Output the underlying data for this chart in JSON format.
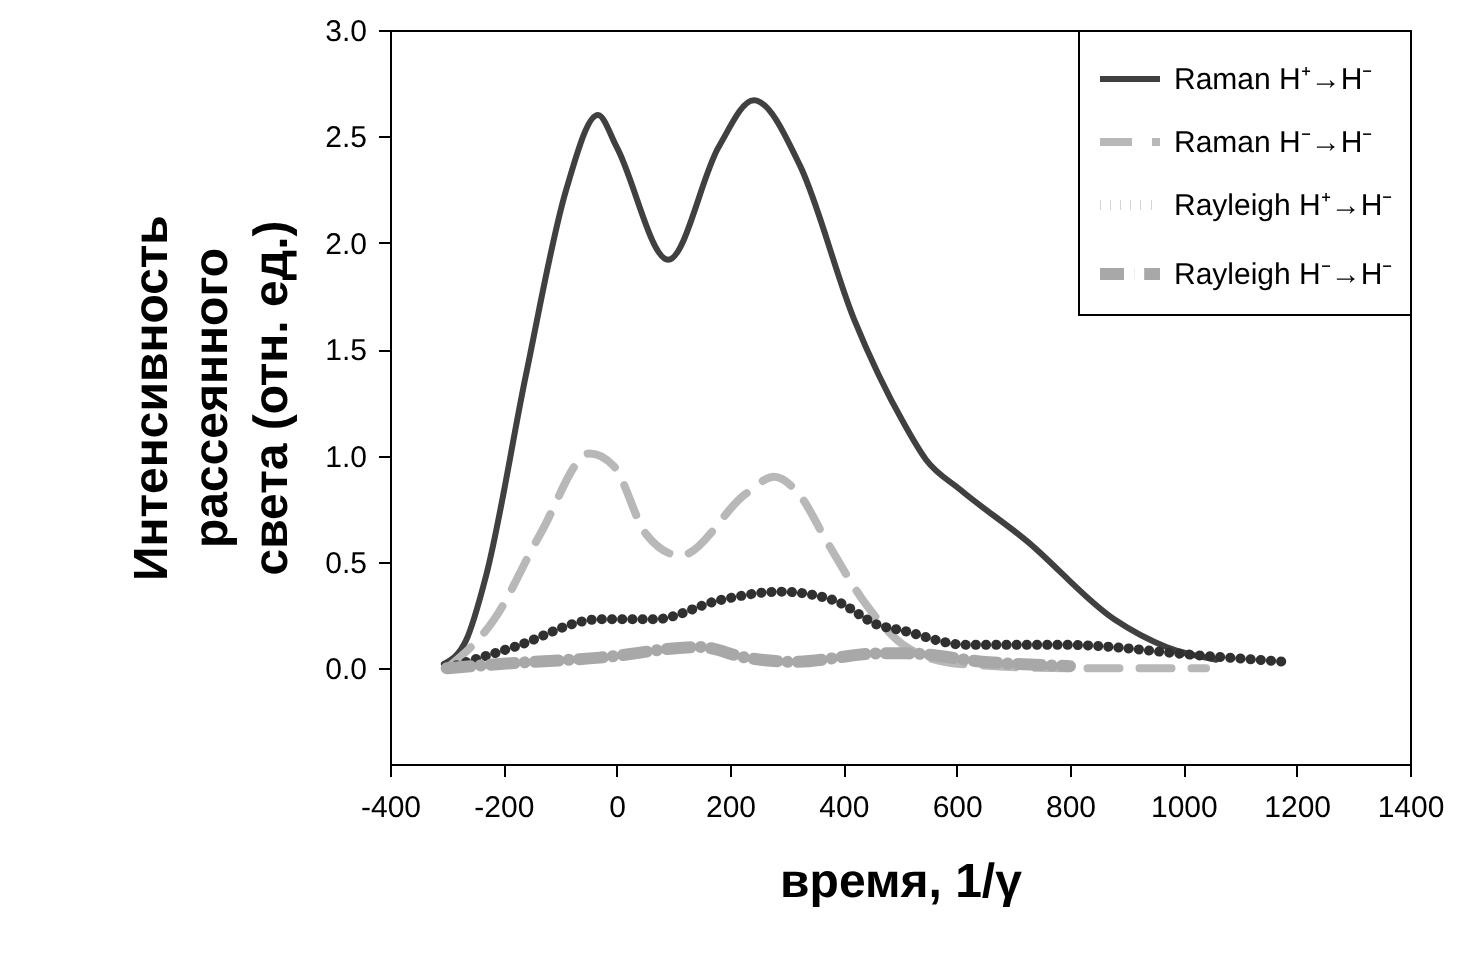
{
  "chart_data": {
    "type": "line",
    "xlabel": "время, 1/γ",
    "ylabel": "Интенсивность\nрассеянного\nсвета (отн. ед.)",
    "xlim": [
      -400,
      1400
    ],
    "xticks": [
      -400,
      -200,
      0,
      200,
      400,
      600,
      800,
      {
        "value": 1000,
        "label": "1000"
      },
      {
        "value": 1200,
        "label": "1200"
      },
      {
        "value": 1400,
        "label": "1400"
      }
    ],
    "ylim": [
      -0.45,
      3.0
    ],
    "yticks": [
      {
        "value": 0,
        "label": "0.0"
      },
      0.5,
      {
        "value": 1,
        "label": "1.0"
      },
      1.5,
      {
        "value": 2,
        "label": "2.0"
      },
      2.5,
      {
        "value": 3,
        "label": "3.0"
      }
    ],
    "grid": false,
    "legend": "top right",
    "marker": "none",
    "series": [
      {
        "name": "Raman H⁺→H⁻",
        "color": "#404040",
        "line_style": "solid",
        "x": [
          -305,
          -266,
          -230,
          -160,
          -89,
          -33,
          0,
          91,
          180,
          242,
          324,
          419,
          507,
          546,
          606,
          723,
          878,
          970,
          1058
        ],
        "values": [
          0.02,
          0.13,
          0.44,
          1.38,
          2.25,
          2.6,
          2.45,
          1.92,
          2.45,
          2.67,
          2.36,
          1.64,
          1.15,
          0.98,
          0.84,
          0.6,
          0.23,
          0.1,
          0.04
        ]
      },
      {
        "name": "Raman H⁻→H⁻",
        "color": "#b8b8b8",
        "line_style": "dashed",
        "x": [
          -300,
          -216,
          -135,
          -47,
          -5,
          52,
          112,
          228,
          278,
          324,
          370,
          440,
          511,
          606,
          800,
          1040
        ],
        "values": [
          0.0,
          0.23,
          0.63,
          1.01,
          0.95,
          0.63,
          0.53,
          0.82,
          0.9,
          0.81,
          0.6,
          0.3,
          0.1,
          0.02,
          0.0,
          0.0
        ]
      },
      {
        "name": "Rayleigh H⁺→H⁻",
        "color": "#303030",
        "line_style": "dotted",
        "x": [
          -300,
          -181,
          -30,
          66,
          182,
          288,
          383,
          465,
          500,
          617,
          793,
          1030,
          1182
        ],
        "values": [
          0.0,
          0.1,
          0.23,
          0.23,
          0.32,
          0.36,
          0.32,
          0.2,
          0.18,
          0.11,
          0.11,
          0.06,
          0.03
        ]
      },
      {
        "name": "Rayleigh H⁻→H⁻",
        "color": "#a8a8a8",
        "line_style": "dashdot",
        "x": [
          -300,
          -206,
          -30,
          147,
          228,
          313,
          465,
          511,
          650,
          800
        ],
        "values": [
          0.0,
          0.02,
          0.05,
          0.1,
          0.05,
          0.03,
          0.07,
          0.07,
          0.03,
          0.01
        ]
      }
    ]
  }
}
